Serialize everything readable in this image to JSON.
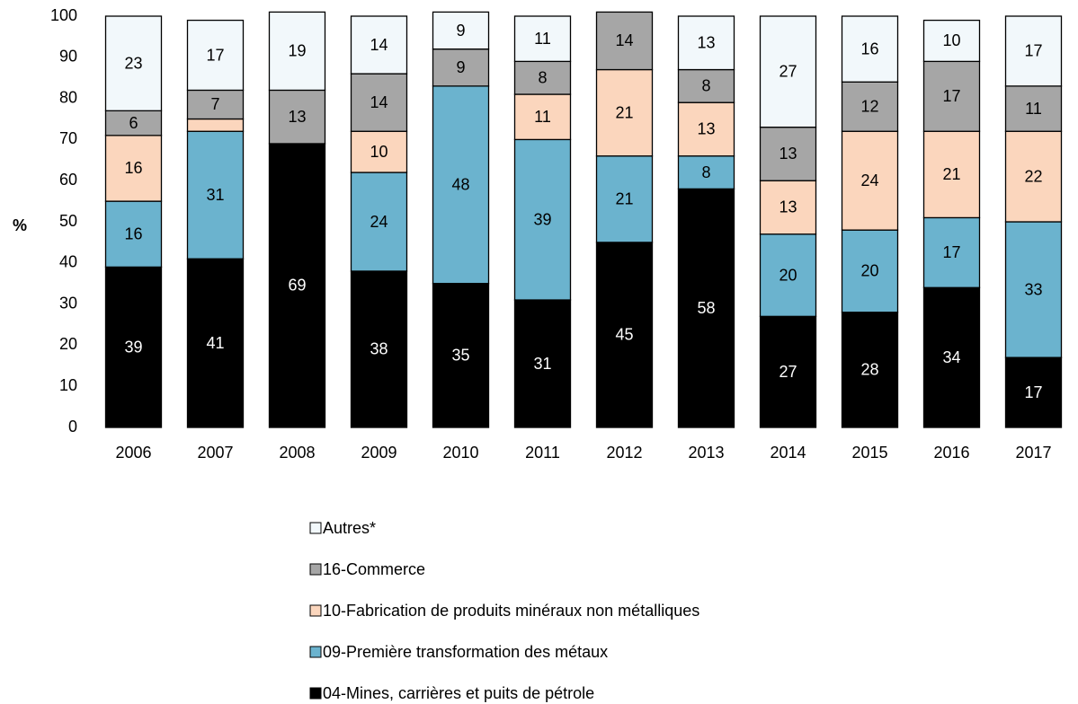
{
  "chart_data": {
    "type": "stacked_bar",
    "y_label": "%",
    "categories": [
      "2006",
      "2007",
      "2008",
      "2009",
      "2010",
      "2011",
      "2012",
      "2013",
      "2014",
      "2015",
      "2016",
      "2017"
    ],
    "series": [
      {
        "name": "04-Mines, carrières et puits de pétrole",
        "color": "#000000",
        "values": [
          39,
          41,
          69,
          38,
          35,
          31,
          45,
          58,
          27,
          28,
          34,
          17
        ]
      },
      {
        "name": "09-Première transformation des métaux",
        "color": "#6bb3ce",
        "values": [
          16,
          31,
          0,
          24,
          48,
          39,
          21,
          8,
          20,
          20,
          17,
          33
        ]
      },
      {
        "name": "10-Fabrication de produits minéraux non métalliques",
        "color": "#fbd6bd",
        "values": [
          16,
          3,
          0,
          10,
          0,
          11,
          21,
          13,
          13,
          24,
          21,
          22
        ]
      },
      {
        "name": "16-Commerce",
        "color": "#a6a6a6",
        "values": [
          6,
          7,
          13,
          14,
          9,
          8,
          14,
          8,
          13,
          12,
          17,
          11
        ]
      },
      {
        "name": "Autres*",
        "color": "#f2f8fb",
        "values": [
          23,
          17,
          19,
          14,
          9,
          11,
          0,
          13,
          27,
          16,
          10,
          17
        ]
      }
    ],
    "ylim": [
      0,
      100
    ],
    "yticks": [
      0,
      10,
      20,
      30,
      40,
      50,
      60,
      70,
      80,
      90,
      100
    ],
    "grid": false,
    "legend": "bottom"
  }
}
